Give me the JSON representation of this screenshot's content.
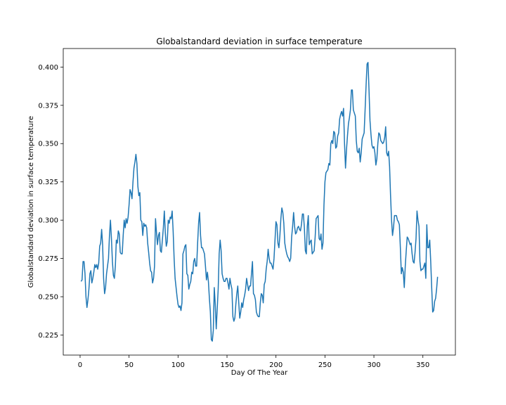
{
  "chart_data": {
    "type": "line",
    "title": "Globalstandard deviation in surface temperature",
    "xlabel": "Day Of The Year",
    "ylabel": "Globalstandard deviation in surface temperature",
    "color": "#1f77b4",
    "grid": false,
    "xlim": [
      -17.2,
      383.2
    ],
    "ylim": [
      0.2119,
      0.4121
    ],
    "xticks": [
      0,
      50,
      100,
      150,
      200,
      250,
      300,
      350
    ],
    "yticks": [
      0.225,
      {
        "value": 0.25,
        "label": "0.250"
      },
      0.275,
      {
        "value": 0.3,
        "label": "0.300"
      },
      0.325,
      {
        "value": 0.35,
        "label": "0.350"
      },
      0.375,
      {
        "value": 0.4,
        "label": "0.400"
      }
    ],
    "x": [
      1,
      2,
      3,
      4,
      5,
      6,
      7,
      8,
      9,
      10,
      11,
      12,
      13,
      14,
      15,
      16,
      17,
      18,
      19,
      20,
      21,
      22,
      23,
      24,
      25,
      26,
      27,
      28,
      29,
      30,
      31,
      32,
      33,
      34,
      35,
      36,
      37,
      38,
      39,
      40,
      41,
      42,
      43,
      44,
      45,
      46,
      47,
      48,
      49,
      50,
      51,
      52,
      53,
      54,
      55,
      56,
      57,
      58,
      59,
      60,
      61,
      62,
      63,
      64,
      65,
      66,
      67,
      68,
      69,
      70,
      71,
      72,
      73,
      74,
      75,
      76,
      77,
      78,
      79,
      80,
      81,
      82,
      83,
      84,
      85,
      86,
      87,
      88,
      89,
      90,
      91,
      92,
      93,
      94,
      95,
      96,
      97,
      98,
      99,
      100,
      101,
      102,
      103,
      104,
      105,
      106,
      107,
      108,
      109,
      110,
      111,
      112,
      113,
      114,
      115,
      116,
      117,
      118,
      119,
      120,
      121,
      122,
      123,
      124,
      125,
      126,
      127,
      128,
      129,
      130,
      131,
      132,
      133,
      134,
      135,
      136,
      137,
      138,
      139,
      140,
      141,
      142,
      143,
      144,
      145,
      146,
      147,
      148,
      149,
      150,
      151,
      152,
      153,
      154,
      155,
      156,
      157,
      158,
      159,
      160,
      161,
      162,
      163,
      164,
      165,
      166,
      167,
      168,
      169,
      170,
      171,
      172,
      173,
      174,
      175,
      176,
      177,
      178,
      179,
      180,
      181,
      182,
      183,
      184,
      185,
      186,
      187,
      188,
      189,
      190,
      191,
      192,
      193,
      194,
      195,
      196,
      197,
      198,
      199,
      200,
      201,
      202,
      203,
      204,
      205,
      206,
      207,
      208,
      209,
      210,
      211,
      212,
      213,
      214,
      215,
      216,
      217,
      218,
      219,
      220,
      221,
      222,
      223,
      224,
      225,
      226,
      227,
      228,
      229,
      230,
      231,
      232,
      233,
      234,
      235,
      236,
      237,
      238,
      239,
      240,
      241,
      242,
      243,
      244,
      245,
      246,
      247,
      248,
      249,
      250,
      251,
      252,
      253,
      254,
      255,
      256,
      257,
      258,
      259,
      260,
      261,
      262,
      263,
      264,
      265,
      266,
      267,
      268,
      269,
      270,
      271,
      272,
      273,
      274,
      275,
      276,
      277,
      278,
      279,
      280,
      281,
      282,
      283,
      284,
      285,
      286,
      287,
      288,
      289,
      290,
      291,
      292,
      293,
      294,
      295,
      296,
      297,
      298,
      299,
      300,
      301,
      302,
      303,
      304,
      305,
      306,
      307,
      308,
      309,
      310,
      311,
      312,
      313,
      314,
      315,
      316,
      317,
      318,
      319,
      320,
      321,
      322,
      323,
      324,
      325,
      326,
      327,
      328,
      329,
      330,
      331,
      332,
      333,
      334,
      335,
      336,
      337,
      338,
      339,
      340,
      341,
      342,
      343,
      344,
      345,
      346,
      347,
      348,
      349,
      350,
      351,
      352,
      353,
      354,
      355,
      356,
      357,
      358,
      359,
      360,
      361,
      362,
      363,
      364,
      365
    ],
    "values": [
      0.26,
      0.261,
      0.273,
      0.273,
      0.265,
      0.25,
      0.243,
      0.248,
      0.255,
      0.265,
      0.267,
      0.259,
      0.262,
      0.266,
      0.271,
      0.269,
      0.271,
      0.268,
      0.272,
      0.283,
      0.285,
      0.294,
      0.284,
      0.262,
      0.252,
      0.256,
      0.265,
      0.27,
      0.275,
      0.29,
      0.3,
      0.288,
      0.273,
      0.264,
      0.262,
      0.27,
      0.287,
      0.285,
      0.293,
      0.291,
      0.279,
      0.278,
      0.278,
      0.29,
      0.3,
      0.295,
      0.301,
      0.298,
      0.302,
      0.31,
      0.32,
      0.318,
      0.314,
      0.325,
      0.334,
      0.338,
      0.343,
      0.337,
      0.322,
      0.316,
      0.318,
      0.3,
      0.299,
      0.29,
      0.298,
      0.296,
      0.297,
      0.295,
      0.285,
      0.279,
      0.272,
      0.267,
      0.266,
      0.259,
      0.262,
      0.27,
      0.301,
      0.292,
      0.284,
      0.29,
      0.292,
      0.28,
      0.279,
      0.287,
      0.295,
      0.306,
      0.292,
      0.283,
      0.286,
      0.3,
      0.298,
      0.302,
      0.301,
      0.306,
      0.293,
      0.275,
      0.262,
      0.256,
      0.25,
      0.245,
      0.243,
      0.244,
      0.241,
      0.246,
      0.278,
      0.28,
      0.283,
      0.284,
      0.265,
      0.264,
      0.255,
      0.258,
      0.26,
      0.266,
      0.265,
      0.273,
      0.275,
      0.27,
      0.27,
      0.285,
      0.298,
      0.305,
      0.29,
      0.282,
      0.282,
      0.28,
      0.278,
      0.27,
      0.261,
      0.266,
      0.26,
      0.249,
      0.24,
      0.222,
      0.221,
      0.228,
      0.256,
      0.245,
      0.229,
      0.242,
      0.255,
      0.278,
      0.287,
      0.28,
      0.265,
      0.262,
      0.26,
      0.26,
      0.262,
      0.262,
      0.259,
      0.255,
      0.262,
      0.258,
      0.255,
      0.237,
      0.234,
      0.236,
      0.245,
      0.252,
      0.257,
      0.246,
      0.236,
      0.24,
      0.246,
      0.243,
      0.248,
      0.251,
      0.255,
      0.262,
      0.258,
      0.254,
      0.257,
      0.257,
      0.265,
      0.273,
      0.252,
      0.251,
      0.248,
      0.24,
      0.238,
      0.237,
      0.237,
      0.246,
      0.252,
      0.251,
      0.246,
      0.258,
      0.26,
      0.268,
      0.273,
      0.281,
      0.275,
      0.272,
      0.272,
      0.27,
      0.268,
      0.275,
      0.287,
      0.299,
      0.297,
      0.285,
      0.282,
      0.29,
      0.301,
      0.308,
      0.305,
      0.298,
      0.285,
      0.281,
      0.278,
      0.276,
      0.275,
      0.273,
      0.275,
      0.289,
      0.296,
      0.305,
      0.296,
      0.291,
      0.292,
      0.295,
      0.296,
      0.294,
      0.293,
      0.297,
      0.304,
      0.304,
      0.295,
      0.28,
      0.278,
      0.296,
      0.303,
      0.284,
      0.286,
      0.287,
      0.278,
      0.279,
      0.28,
      0.289,
      0.301,
      0.302,
      0.303,
      0.288,
      0.287,
      0.291,
      0.281,
      0.285,
      0.31,
      0.325,
      0.331,
      0.332,
      0.333,
      0.337,
      0.336,
      0.35,
      0.352,
      0.35,
      0.358,
      0.357,
      0.347,
      0.348,
      0.355,
      0.357,
      0.366,
      0.369,
      0.371,
      0.368,
      0.373,
      0.35,
      0.334,
      0.346,
      0.355,
      0.363,
      0.367,
      0.372,
      0.385,
      0.385,
      0.372,
      0.37,
      0.368,
      0.352,
      0.345,
      0.344,
      0.347,
      0.338,
      0.344,
      0.353,
      0.355,
      0.357,
      0.372,
      0.388,
      0.402,
      0.403,
      0.385,
      0.365,
      0.356,
      0.349,
      0.347,
      0.348,
      0.344,
      0.336,
      0.34,
      0.35,
      0.357,
      0.356,
      0.352,
      0.351,
      0.35,
      0.351,
      0.354,
      0.361,
      0.344,
      0.342,
      0.345,
      0.335,
      0.316,
      0.3,
      0.29,
      0.295,
      0.303,
      0.303,
      0.303,
      0.3,
      0.299,
      0.297,
      0.282,
      0.265,
      0.269,
      0.266,
      0.256,
      0.27,
      0.28,
      0.289,
      0.288,
      0.286,
      0.284,
      0.285,
      0.278,
      0.273,
      0.272,
      0.279,
      0.288,
      0.306,
      0.3,
      0.296,
      0.273,
      0.267,
      0.268,
      0.268,
      0.27,
      0.272,
      0.262,
      0.297,
      0.282,
      0.282,
      0.287,
      0.273,
      0.256,
      0.24,
      0.241,
      0.247,
      0.249,
      0.255,
      0.263
    ]
  }
}
